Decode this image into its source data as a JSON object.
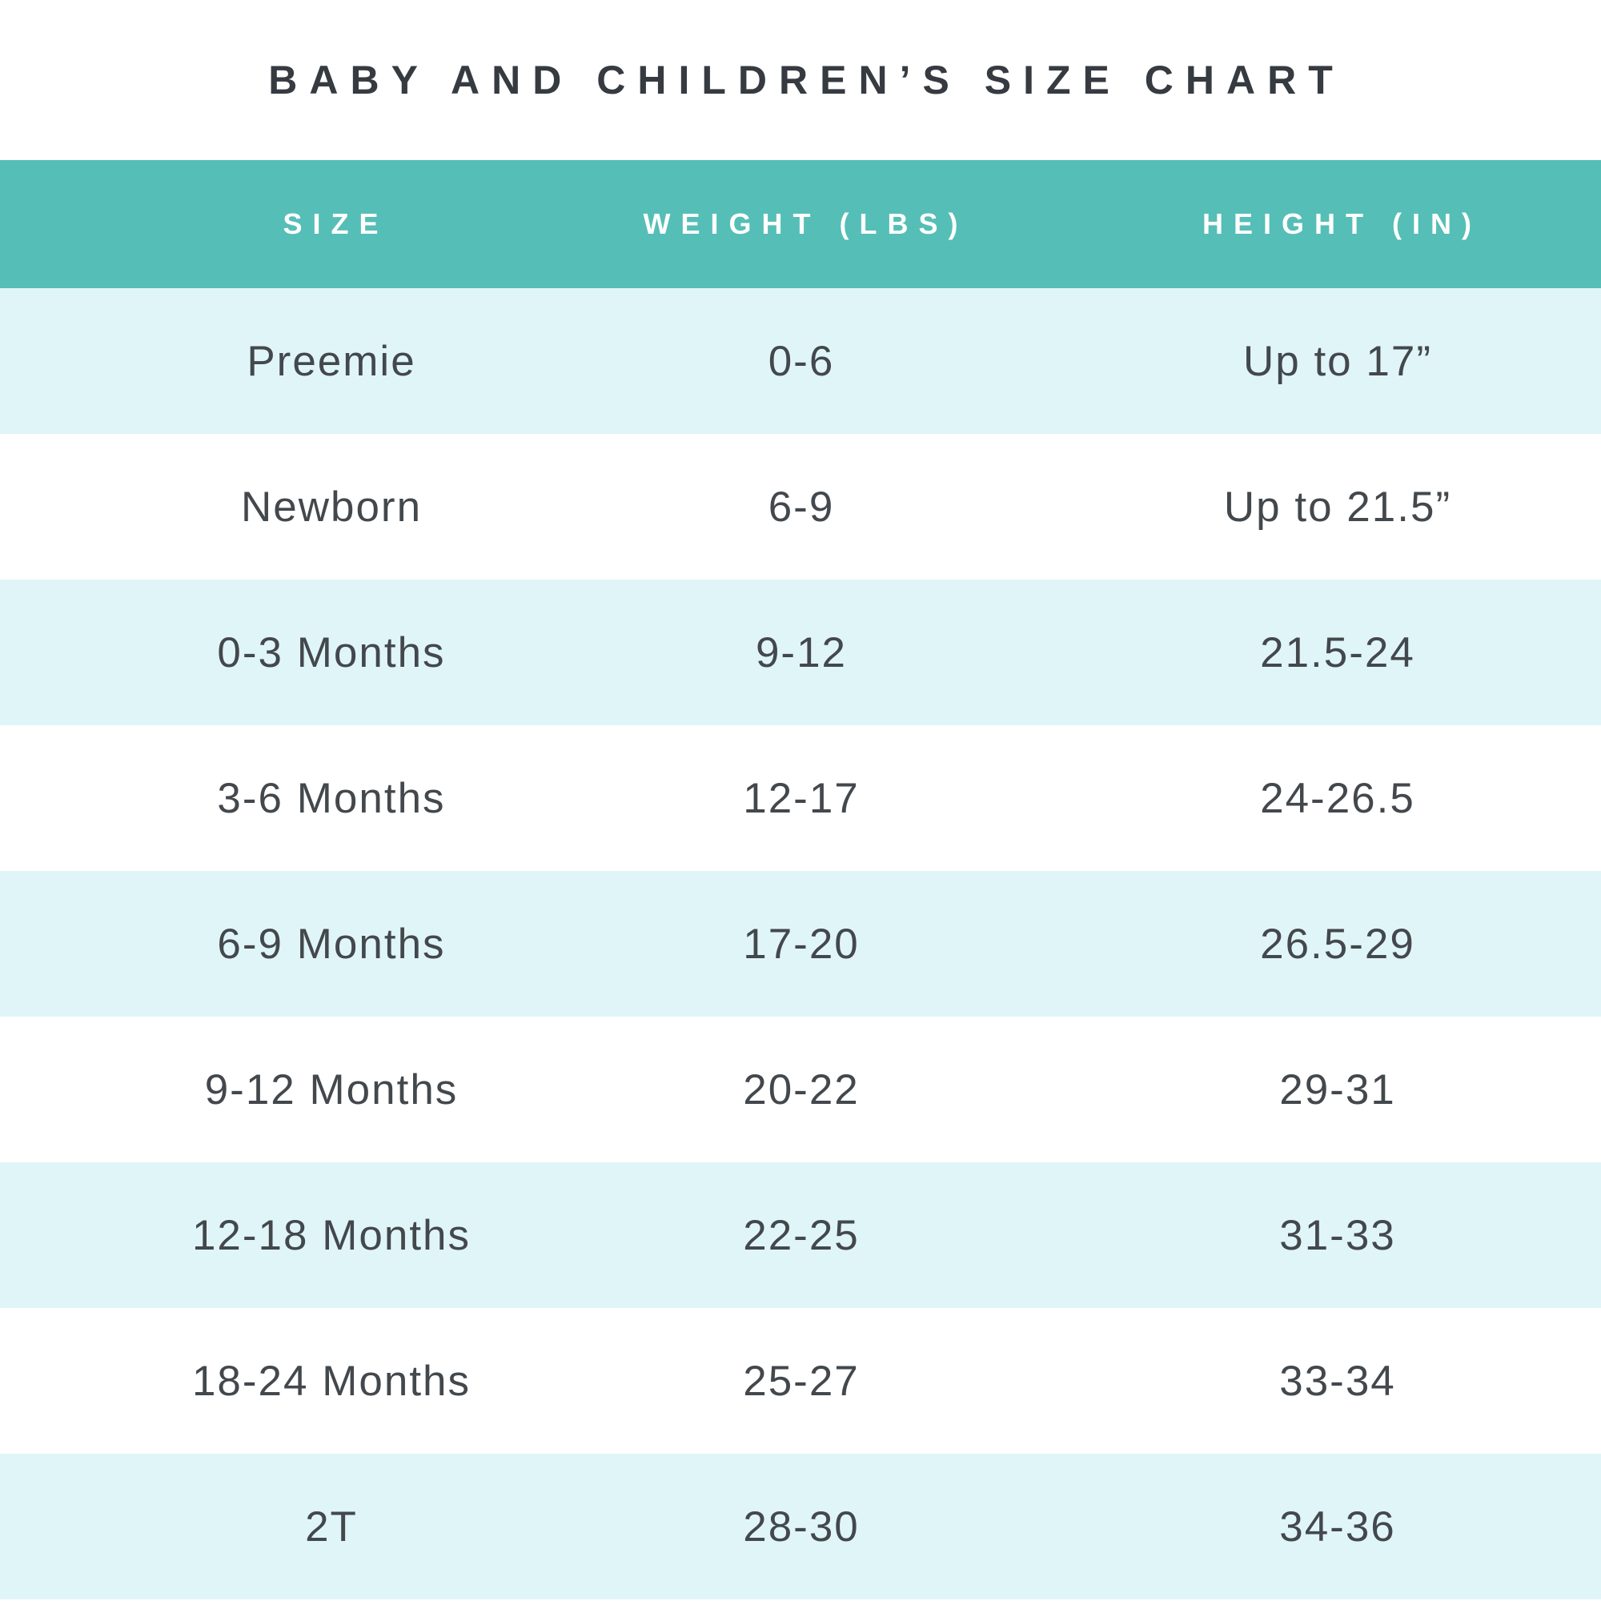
{
  "title": "BABY AND CHILDREN’S SIZE CHART",
  "colors": {
    "header_bg": "#55beb7",
    "row_alt_bg": "#e0f5f7",
    "row_bg": "#ffffff",
    "header_text": "#ffffff",
    "title_text": "#363b41",
    "cell_text": "#43484d"
  },
  "table": {
    "headers": [
      "SIZE",
      "WEIGHT (LBS)",
      "HEIGHT (IN)"
    ],
    "rows": [
      [
        "Preemie",
        "0-6",
        "Up to 17”"
      ],
      [
        "Newborn",
        "6-9",
        "Up to 21.5”"
      ],
      [
        "0-3 Months",
        "9-12",
        "21.5-24"
      ],
      [
        "3-6 Months",
        "12-17",
        "24-26.5"
      ],
      [
        "6-9 Months",
        "17-20",
        "26.5-29"
      ],
      [
        "9-12 Months",
        "20-22",
        "29-31"
      ],
      [
        "12-18 Months",
        "22-25",
        "31-33"
      ],
      [
        "18-24 Months",
        "25-27",
        "33-34"
      ],
      [
        "2T",
        "28-30",
        "34-36"
      ]
    ]
  },
  "chart_data": {
    "type": "table",
    "title": "BABY AND CHILDREN’S SIZE CHART",
    "columns": [
      "SIZE",
      "WEIGHT (LBS)",
      "HEIGHT (IN)"
    ],
    "rows": [
      {
        "size": "Preemie",
        "weight_lbs": "0-6",
        "height_in": "Up to 17”"
      },
      {
        "size": "Newborn",
        "weight_lbs": "6-9",
        "height_in": "Up to 21.5”"
      },
      {
        "size": "0-3 Months",
        "weight_lbs": "9-12",
        "height_in": "21.5-24"
      },
      {
        "size": "3-6 Months",
        "weight_lbs": "12-17",
        "height_in": "24-26.5"
      },
      {
        "size": "6-9 Months",
        "weight_lbs": "17-20",
        "height_in": "26.5-29"
      },
      {
        "size": "9-12 Months",
        "weight_lbs": "20-22",
        "height_in": "29-31"
      },
      {
        "size": "12-18 Months",
        "weight_lbs": "22-25",
        "height_in": "31-33"
      },
      {
        "size": "18-24 Months",
        "weight_lbs": "25-27",
        "height_in": "33-34"
      },
      {
        "size": "2T",
        "weight_lbs": "28-30",
        "height_in": "34-36"
      }
    ],
    "layout_hints": {
      "header_style": "teal band with white letter-spaced uppercase text",
      "row_striping": "alternating pale-cyan and white, starting pale-cyan",
      "alignment": "all columns center-aligned"
    }
  }
}
